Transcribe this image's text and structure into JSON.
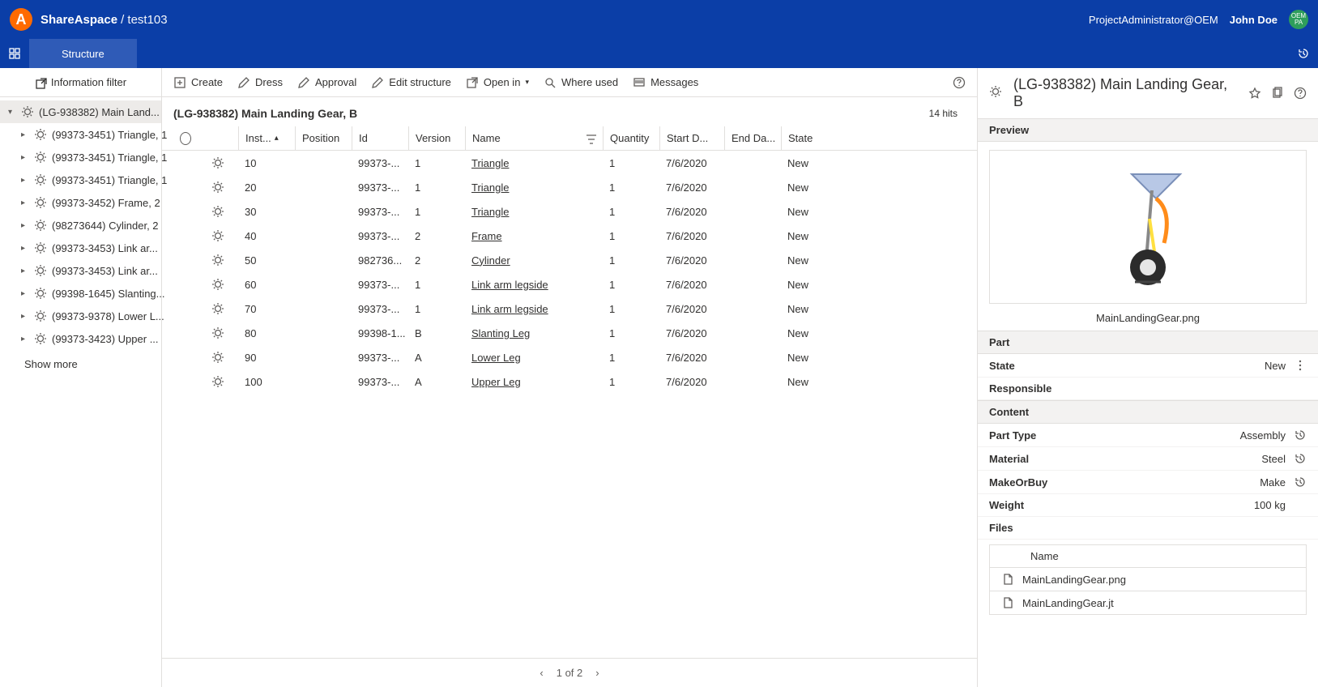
{
  "header": {
    "brand": "ShareAspace",
    "crumb": "/ test103",
    "role": "ProjectAdministrator@OEM",
    "user": "John Doe",
    "avatar_label": "OEM\nPA"
  },
  "nav": {
    "tab": "Structure"
  },
  "sidebar": {
    "filter_label": "Information filter",
    "show_more": "Show more",
    "root": "(LG-938382) Main Land...",
    "children": [
      "(99373-3451) Triangle, 1",
      "(99373-3451) Triangle, 1",
      "(99373-3451) Triangle, 1",
      "(99373-3452) Frame, 2",
      "(98273644) Cylinder, 2",
      "(99373-3453) Link ar...",
      "(99373-3453) Link ar...",
      "(99398-1645) Slanting...",
      "(99373-9378) Lower L...",
      "(99373-3423) Upper ..."
    ]
  },
  "toolbar": {
    "create": "Create",
    "dress": "Dress",
    "approval": "Approval",
    "edit": "Edit structure",
    "openin": "Open in",
    "whereused": "Where used",
    "messages": "Messages"
  },
  "content": {
    "title": "(LG-938382) Main Landing Gear, B",
    "hits": "14 hits",
    "columns": {
      "inst": "Inst...",
      "position": "Position",
      "id": "Id",
      "version": "Version",
      "name": "Name",
      "quantity": "Quantity",
      "start": "Start D...",
      "end": "End Da...",
      "state": "State"
    },
    "rows": [
      {
        "inst": "10",
        "id": "99373-...",
        "ver": "1",
        "name": "Triangle",
        "qty": "1",
        "start": "7/6/2020",
        "state": "New"
      },
      {
        "inst": "20",
        "id": "99373-...",
        "ver": "1",
        "name": "Triangle",
        "qty": "1",
        "start": "7/6/2020",
        "state": "New"
      },
      {
        "inst": "30",
        "id": "99373-...",
        "ver": "1",
        "name": "Triangle",
        "qty": "1",
        "start": "7/6/2020",
        "state": "New"
      },
      {
        "inst": "40",
        "id": "99373-...",
        "ver": "2",
        "name": "Frame",
        "qty": "1",
        "start": "7/6/2020",
        "state": "New"
      },
      {
        "inst": "50",
        "id": "982736...",
        "ver": "2",
        "name": "Cylinder",
        "qty": "1",
        "start": "7/6/2020",
        "state": "New"
      },
      {
        "inst": "60",
        "id": "99373-...",
        "ver": "1",
        "name": "Link arm legside",
        "qty": "1",
        "start": "7/6/2020",
        "state": "New"
      },
      {
        "inst": "70",
        "id": "99373-...",
        "ver": "1",
        "name": "Link arm legside",
        "qty": "1",
        "start": "7/6/2020",
        "state": "New"
      },
      {
        "inst": "80",
        "id": "99398-1...",
        "ver": "B",
        "name": "Slanting Leg",
        "qty": "1",
        "start": "7/6/2020",
        "state": "New"
      },
      {
        "inst": "90",
        "id": "99373-...",
        "ver": "A",
        "name": "Lower Leg",
        "qty": "1",
        "start": "7/6/2020",
        "state": "New"
      },
      {
        "inst": "100",
        "id": "99373-...",
        "ver": "A",
        "name": "Upper Leg",
        "qty": "1",
        "start": "7/6/2020",
        "state": "New"
      }
    ],
    "pager": "1 of 2"
  },
  "right": {
    "title": "(LG-938382) Main Landing Gear, B",
    "preview_label": "Preview",
    "preview_filename": "MainLandingGear.png",
    "part_label": "Part",
    "state_label": "State",
    "state_value": "New",
    "responsible_label": "Responsible",
    "content_label": "Content",
    "parttype_label": "Part Type",
    "parttype_value": "Assembly",
    "material_label": "Material",
    "material_value": "Steel",
    "makeorbuy_label": "MakeOrBuy",
    "makeorbuy_value": "Make",
    "weight_label": "Weight",
    "weight_value": "100 kg",
    "files_label": "Files",
    "files_name_col": "Name",
    "files": [
      "MainLandingGear.png",
      "MainLandingGear.jt"
    ]
  }
}
